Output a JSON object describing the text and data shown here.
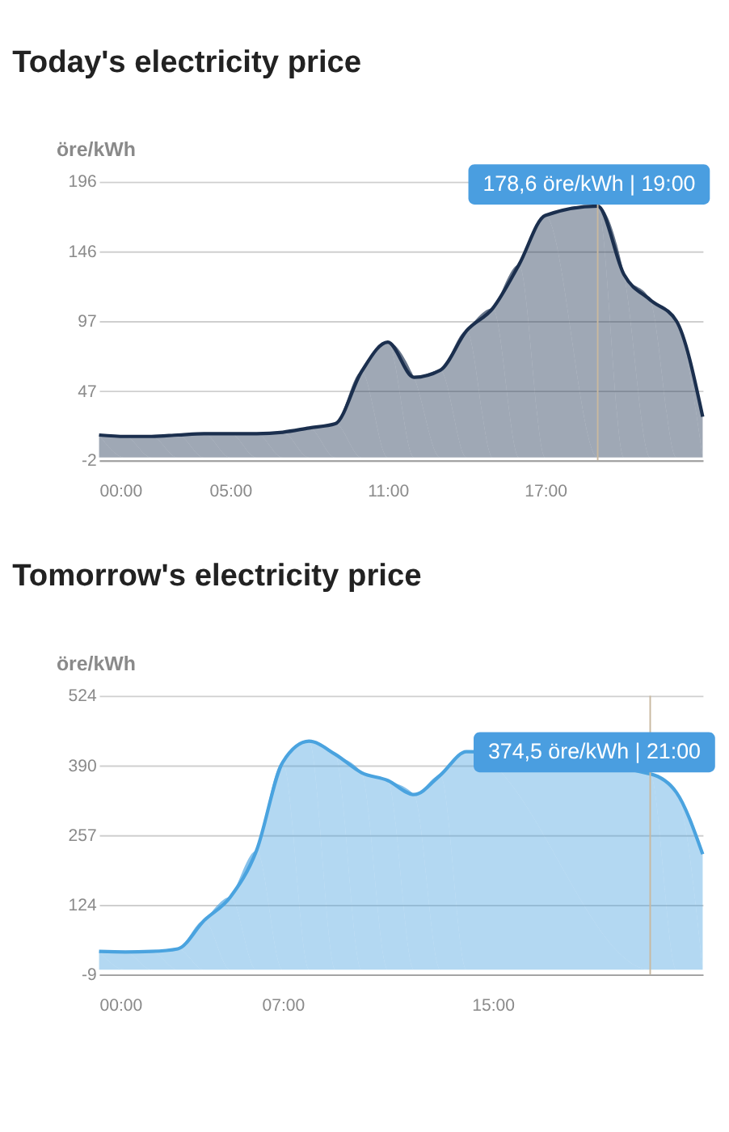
{
  "chart_data": [
    {
      "type": "area",
      "title": "Today's electricity price",
      "ylabel": "öre/kWh",
      "x": [
        0,
        1,
        2,
        3,
        4,
        5,
        6,
        7,
        8,
        9,
        10,
        11,
        12,
        13,
        14,
        15,
        16,
        17,
        18,
        19,
        20,
        21,
        22,
        23
      ],
      "series": [
        {
          "color": "#1b2f4e",
          "values": [
            16,
            15,
            15,
            16,
            17,
            17,
            17,
            18,
            21,
            24,
            61,
            82,
            57,
            62,
            90,
            106,
            137,
            172,
            null,
            178.6,
            130,
            112,
            97,
            29
          ]
        }
      ],
      "xlim": [
        0,
        23
      ],
      "xticks": [
        {
          "value": 0,
          "label": "00:00"
        },
        {
          "value": 5,
          "label": "05:00"
        },
        {
          "value": 11,
          "label": "11:00"
        },
        {
          "value": 17,
          "label": "17:00"
        }
      ],
      "ylim": [
        -2,
        196
      ],
      "yticks": [
        -2,
        47,
        97,
        146,
        196
      ],
      "grid": "y",
      "marker": "none",
      "line_style": "solid",
      "ref_lines": [
        {
          "axis": "x",
          "value": 19,
          "color": "#c9b9a0"
        }
      ],
      "annotations": [
        {
          "text": "178,6 öre/kWh | 19:00",
          "x": 19,
          "y": 178.6
        }
      ]
    },
    {
      "type": "area",
      "title": "Tomorrow's electricity price",
      "ylabel": "öre/kWh",
      "x": [
        0,
        1,
        2,
        3,
        4,
        5,
        6,
        7,
        8,
        9,
        10,
        11,
        12,
        13,
        14,
        15,
        16,
        17,
        18,
        19,
        20,
        21,
        22,
        23
      ],
      "series": [
        {
          "color": "#4aa3df",
          "values": [
            35,
            34,
            35,
            40,
            94,
            139,
            228,
            397,
            437,
            412,
            377,
            362,
            335,
            372,
            417,
            null,
            null,
            null,
            null,
            null,
            null,
            374.5,
            339,
            221
          ]
        }
      ],
      "xlim": [
        0,
        23
      ],
      "xticks": [
        {
          "value": 0,
          "label": "00:00"
        },
        {
          "value": 7,
          "label": "07:00"
        },
        {
          "value": 15,
          "label": "15:00"
        }
      ],
      "ylim": [
        -9,
        524
      ],
      "yticks": [
        -9,
        124,
        257,
        390,
        524
      ],
      "grid": "y",
      "marker": "none",
      "line_style": "solid",
      "ref_lines": [
        {
          "axis": "x",
          "value": 21,
          "color": "#c9b9a0"
        }
      ],
      "annotations": [
        {
          "text": "374,5 öre/kWh | 21:00",
          "x": 21,
          "y": 374.5
        }
      ]
    }
  ]
}
